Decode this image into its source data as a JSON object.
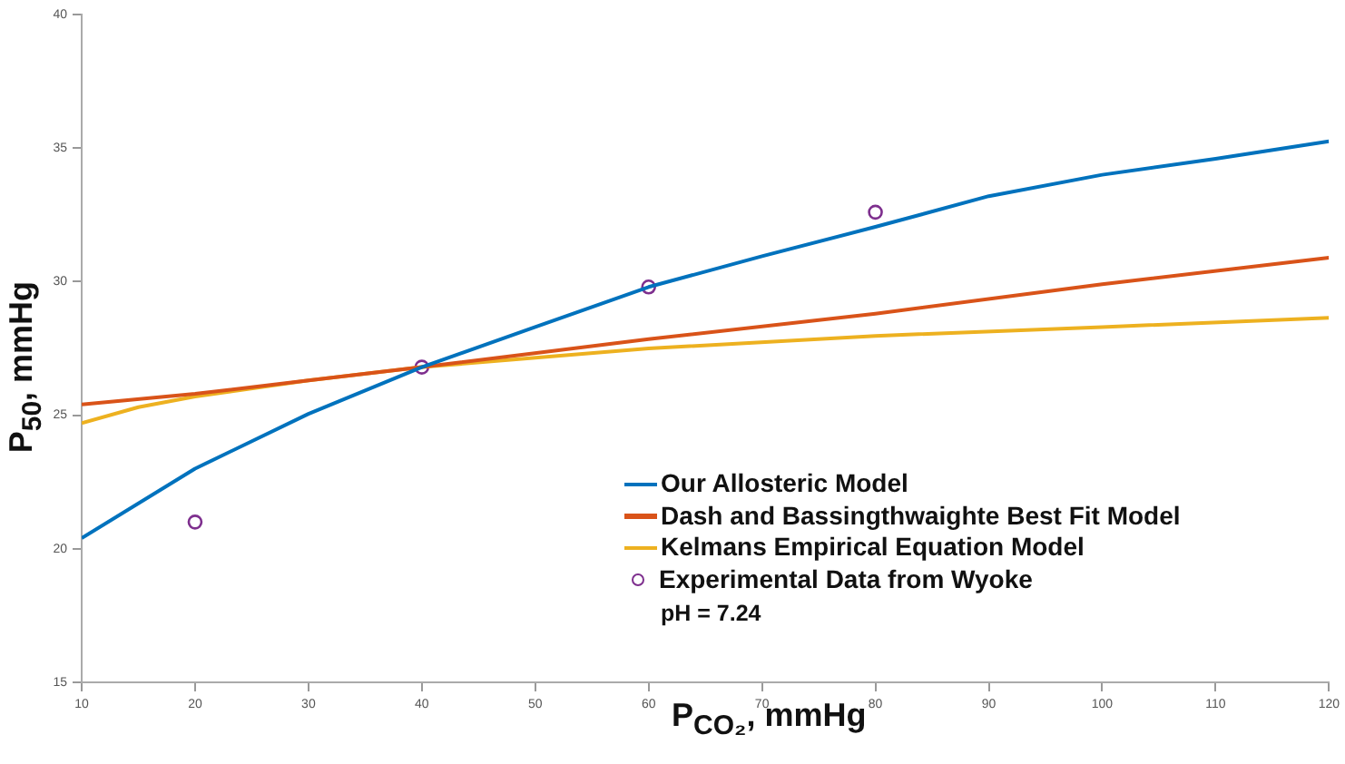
{
  "chart_data": {
    "type": "line",
    "xlabel": "P$_{CO₂}$, mmHg",
    "ylabel": "P$_{50}$, mmHg",
    "xlim": [
      10,
      120
    ],
    "xticks": [
      10,
      20,
      30,
      40,
      50,
      60,
      70,
      80,
      90,
      100,
      110,
      120
    ],
    "ylim": [
      15,
      40
    ],
    "yticks": [
      15,
      20,
      25,
      30,
      35,
      40
    ],
    "grid": false,
    "legend": "bottom right",
    "annotations": [
      "pH = 7.24"
    ],
    "series": [
      {
        "name": "Our Allosteric Model",
        "color": "#0072bd",
        "x": [
          10,
          20,
          30,
          40,
          50,
          60,
          70,
          80,
          90,
          100,
          110,
          120
        ],
        "values": [
          20.4,
          23.0,
          25.05,
          26.8,
          28.3,
          29.8,
          30.95,
          32.05,
          33.2,
          34.0,
          34.6,
          35.25
        ]
      },
      {
        "name": "Dash and Bassingthwaighte Best Fit Model",
        "color": "#d95319",
        "x": [
          10,
          20,
          30,
          40,
          60,
          80,
          100,
          120
        ],
        "values": [
          25.4,
          25.8,
          26.3,
          26.8,
          27.85,
          28.8,
          29.9,
          30.9
        ]
      },
      {
        "name": "Kelmans Empirical Equation Model",
        "color": "#edb120",
        "x": [
          10,
          15,
          20,
          30,
          40,
          60,
          80,
          100,
          120
        ],
        "values": [
          24.7,
          25.3,
          25.7,
          26.3,
          26.8,
          27.5,
          27.97,
          28.3,
          28.65
        ]
      },
      {
        "name": "Experimental Data from Wyoke",
        "type": "scatter",
        "marker": "circle",
        "color": "#7e2f8e",
        "x": [
          20,
          40,
          60,
          80
        ],
        "values": [
          21.0,
          26.8,
          29.8,
          32.6
        ]
      }
    ]
  }
}
